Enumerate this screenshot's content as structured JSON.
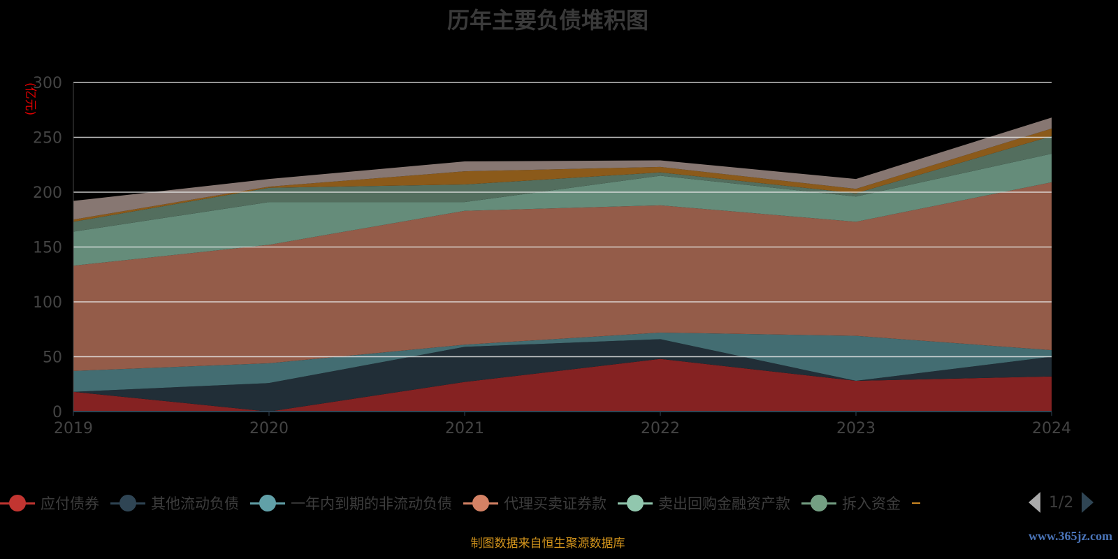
{
  "chart_data": {
    "type": "area",
    "stacked": true,
    "title": "历年主要负债堆积图",
    "ylabel": "(亿元)",
    "xlabel": "",
    "ylim": [
      0,
      300
    ],
    "yticks": [
      "0",
      "50",
      "100",
      "150",
      "200",
      "250",
      "300"
    ],
    "categories": [
      "2019",
      "2020",
      "2021",
      "2022",
      "2023",
      "2024"
    ],
    "grid": true,
    "legend_position": "bottom",
    "series": [
      {
        "name": "应付债券",
        "color": "#c23531",
        "fill": "#852222",
        "values": [
          18,
          0,
          27,
          48,
          28,
          32
        ]
      },
      {
        "name": "其他流动负债",
        "color": "#2f4554",
        "fill": "#212e37",
        "values": [
          0,
          26,
          32,
          18,
          0,
          18
        ]
      },
      {
        "name": "一年内到期的非流动负债",
        "color": "#61a0a8",
        "fill": "#436d72",
        "values": [
          19,
          18,
          2,
          6,
          41,
          6
        ]
      },
      {
        "name": "代理买卖证券款",
        "color": "#d48265",
        "fill": "#945c49",
        "values": [
          96,
          108,
          122,
          116,
          104,
          153
        ]
      },
      {
        "name": "卖出回购金融资产款",
        "color": "#91c7ae",
        "fill": "#658c7a",
        "values": [
          31,
          39,
          8,
          27,
          23,
          26
        ]
      },
      {
        "name": "拆入资金",
        "color": "#749f83",
        "fill": "#536e5e",
        "values": [
          9,
          13,
          16,
          3,
          3,
          16
        ]
      },
      {
        "name": "",
        "color": "#ca8622",
        "fill": "#8b5a1a",
        "values": [
          2,
          1,
          12,
          5,
          4,
          7
        ]
      },
      {
        "name": "",
        "color": "#bda29a",
        "fill": "#877772",
        "values": [
          17,
          7,
          9,
          6,
          9,
          10
        ]
      }
    ]
  },
  "legend": {
    "page": "1/2"
  },
  "source": "制图数据来自恒生聚源数据库",
  "watermark": "www.365jz.com"
}
